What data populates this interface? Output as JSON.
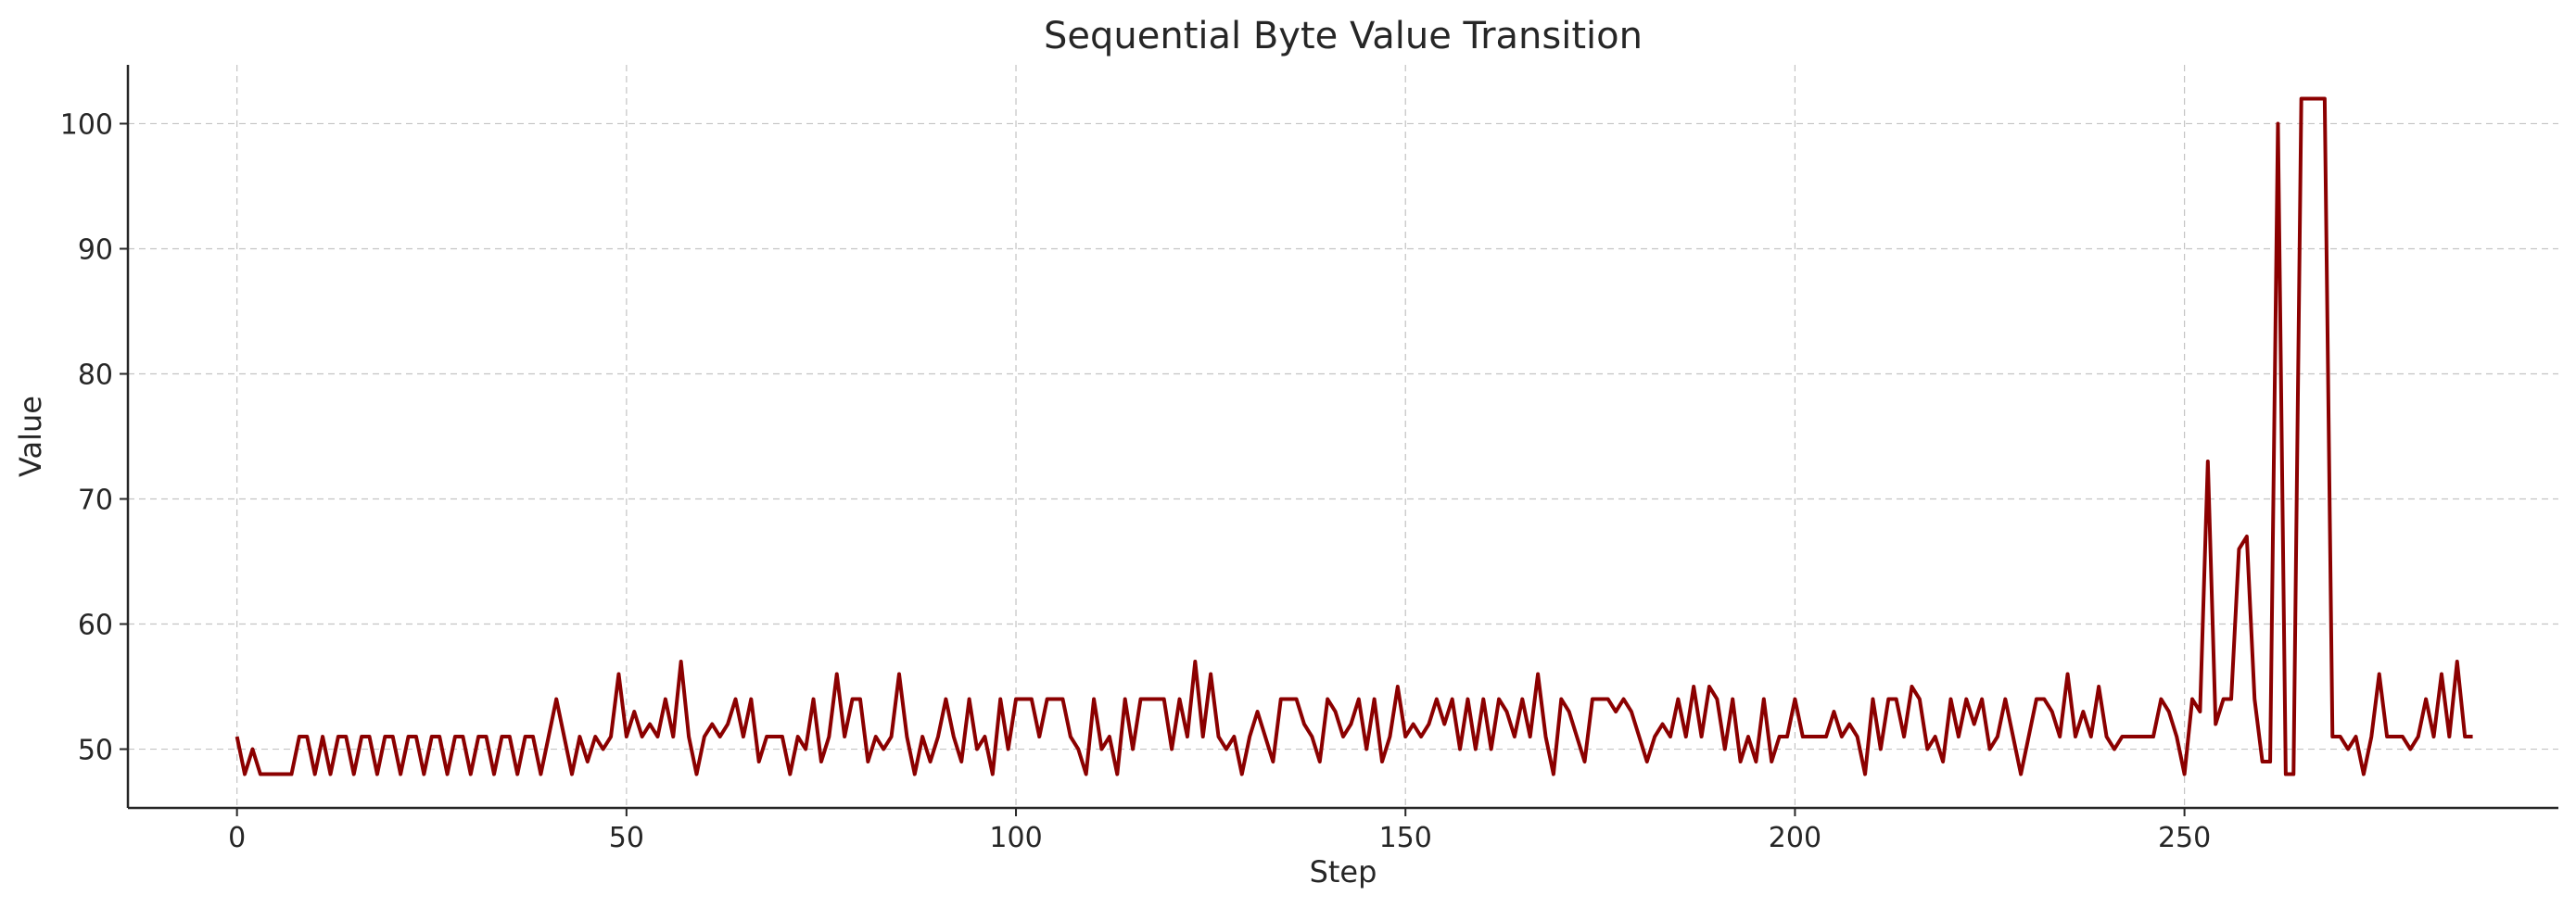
{
  "chart_data": {
    "type": "line",
    "title": "Sequential Byte Value Transition",
    "xlabel": "Step",
    "ylabel": "Value",
    "xlim": [
      -14,
      298
    ],
    "ylim": [
      45.3,
      104.7
    ],
    "xticks": [
      0,
      50,
      100,
      150,
      200,
      250
    ],
    "yticks": [
      50,
      60,
      70,
      80,
      90,
      100
    ],
    "grid": true,
    "legend": "none",
    "line_color": "#8b0000",
    "series": [
      {
        "values": [
          51,
          48,
          50,
          48,
          48,
          48,
          48,
          48,
          51,
          51,
          48,
          51,
          48,
          51,
          51,
          48,
          51,
          51,
          48,
          51,
          51,
          48,
          51,
          51,
          48,
          51,
          51,
          48,
          51,
          51,
          48,
          51,
          51,
          48,
          51,
          51,
          48,
          51,
          51,
          48,
          51,
          54,
          51,
          48,
          51,
          49,
          51,
          50,
          51,
          56,
          51,
          53,
          51,
          52,
          51,
          54,
          51,
          57,
          51,
          48,
          51,
          52,
          51,
          52,
          54,
          51,
          54,
          49,
          51,
          51,
          51,
          48,
          51,
          50,
          54,
          49,
          51,
          56,
          51,
          54,
          54,
          49,
          51,
          50,
          51,
          56,
          51,
          48,
          51,
          49,
          51,
          54,
          51,
          49,
          54,
          50,
          51,
          48,
          54,
          50,
          54,
          54,
          54,
          51,
          54,
          54,
          54,
          51,
          50,
          48,
          54,
          50,
          51,
          48,
          54,
          50,
          54,
          54,
          54,
          54,
          50,
          54,
          51,
          57,
          51,
          56,
          51,
          50,
          51,
          48,
          51,
          53,
          51,
          49,
          54,
          54,
          54,
          52,
          51,
          49,
          54,
          53,
          51,
          52,
          54,
          50,
          54,
          49,
          51,
          55,
          51,
          52,
          51,
          52,
          54,
          52,
          54,
          50,
          54,
          50,
          54,
          50,
          54,
          53,
          51,
          54,
          51,
          56,
          51,
          48,
          54,
          53,
          51,
          49,
          54,
          54,
          54,
          53,
          54,
          53,
          51,
          49,
          51,
          52,
          51,
          54,
          51,
          55,
          51,
          55,
          54,
          50,
          54,
          49,
          51,
          49,
          54,
          49,
          51,
          51,
          54,
          51,
          51,
          51,
          51,
          53,
          51,
          52,
          51,
          48,
          54,
          50,
          54,
          54,
          51,
          55,
          54,
          50,
          51,
          49,
          54,
          51,
          54,
          52,
          54,
          50,
          51,
          54,
          51,
          48,
          51,
          54,
          54,
          53,
          51,
          56,
          51,
          53,
          51,
          55,
          51,
          50,
          51,
          51,
          51,
          51,
          51,
          54,
          53,
          51,
          48,
          54,
          53,
          73,
          52,
          54,
          54,
          66,
          67,
          54,
          49,
          49,
          100,
          48,
          48,
          102,
          102,
          102,
          102,
          51,
          51,
          50,
          51,
          48,
          51,
          56,
          51,
          51,
          51,
          50,
          51,
          54,
          51,
          56,
          51,
          57,
          51,
          51
        ]
      }
    ]
  }
}
